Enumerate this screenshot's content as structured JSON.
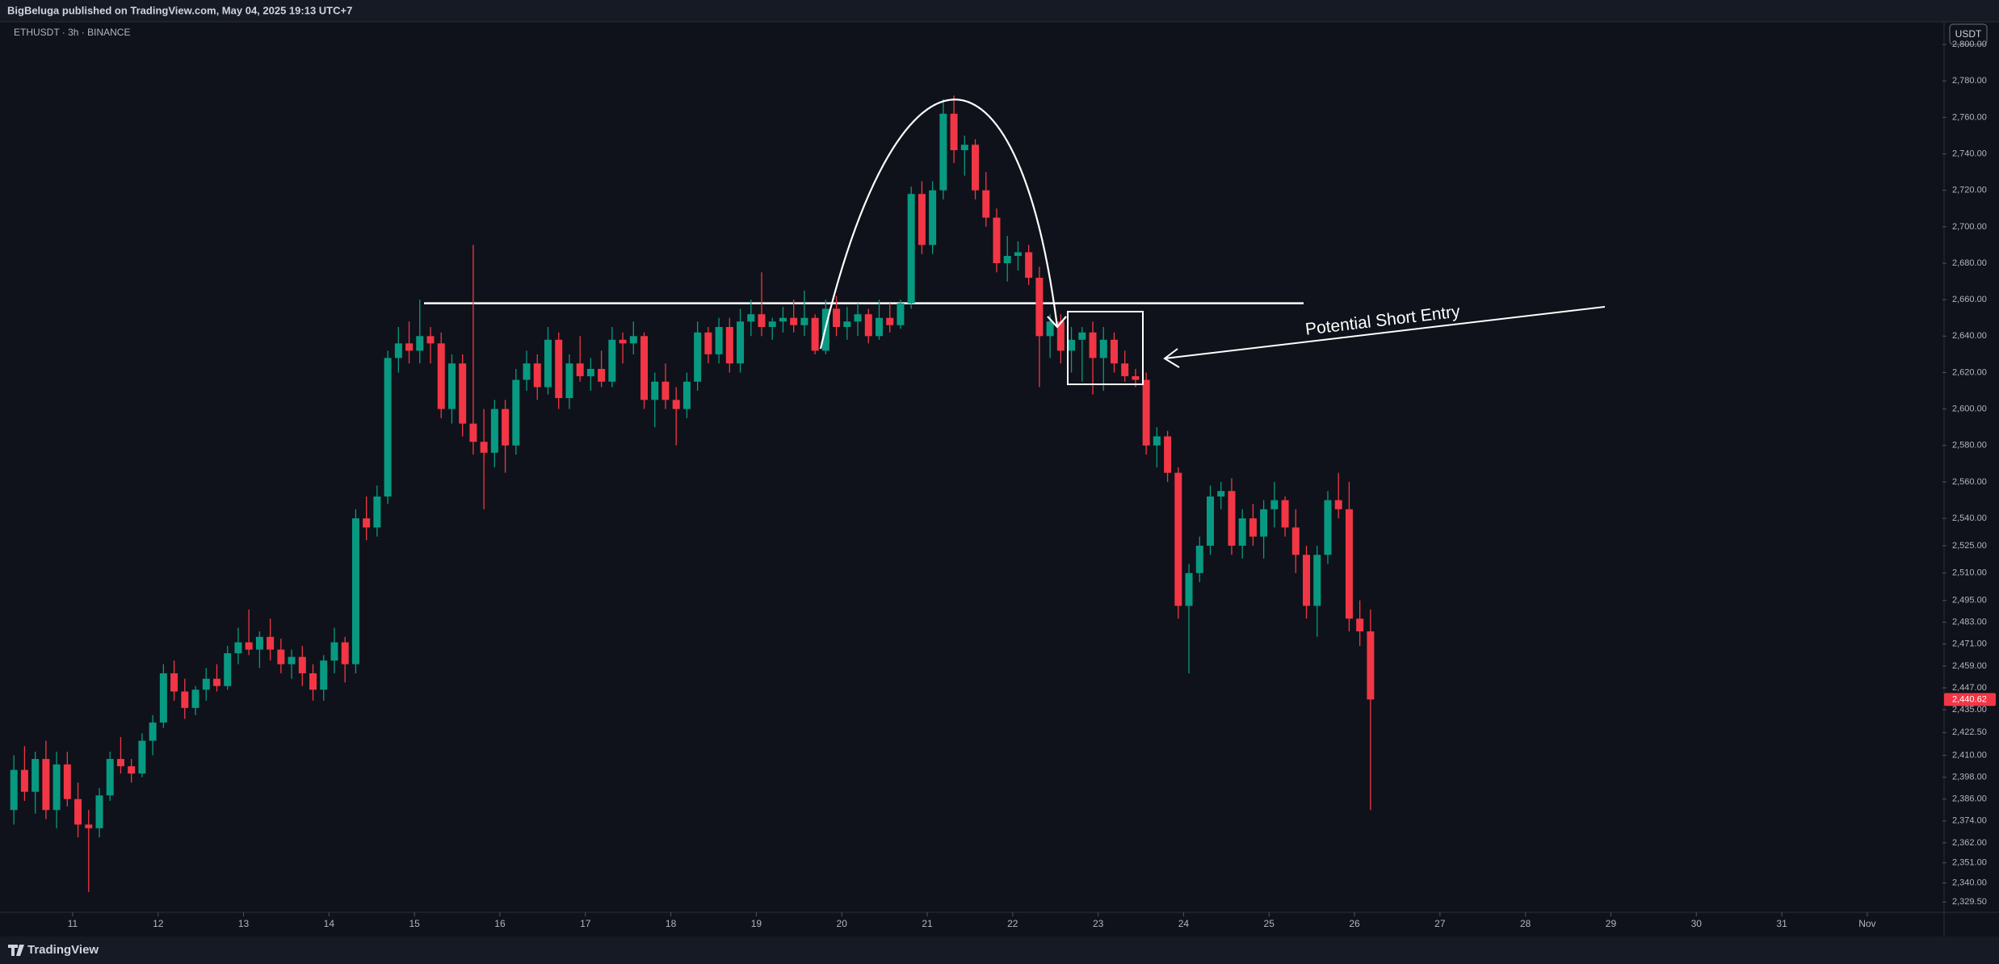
{
  "header": {
    "published": "BigBeluga published on TradingView.com, May 04, 2025 19:13 UTC+7",
    "brand": "TradingView"
  },
  "chart_data": {
    "type": "candlestick",
    "symbol": "ETHUSDT · 3h · BINANCE",
    "currency": "USDT",
    "annotation": "Potential Short Entry",
    "up_color": "#089981",
    "down_color": "#f23645",
    "grid": false,
    "resistance": 2658,
    "last_price": {
      "value": 2440.62,
      "label": "2,440.62"
    },
    "xlim": [
      10.15,
      32.88
    ],
    "xticks": [
      11,
      12,
      13,
      14,
      15,
      16,
      17,
      18,
      19,
      20,
      21,
      22,
      23,
      24,
      25,
      26,
      27,
      28,
      29,
      30,
      31,
      {
        "value": 32,
        "label": "Nov"
      }
    ],
    "ylim": [
      2315,
      2812
    ],
    "yticks": [
      {
        "value": 2800,
        "label": "2,800.00"
      },
      {
        "value": 2780,
        "label": "2,780.00"
      },
      {
        "value": 2760,
        "label": "2,760.00"
      },
      {
        "value": 2740,
        "label": "2,740.00"
      },
      {
        "value": 2720,
        "label": "2,720.00"
      },
      {
        "value": 2700,
        "label": "2,700.00"
      },
      {
        "value": 2680,
        "label": "2,680.00"
      },
      {
        "value": 2660,
        "label": "2,660.00"
      },
      {
        "value": 2640,
        "label": "2,640.00"
      },
      {
        "value": 2620,
        "label": "2,620.00"
      },
      {
        "value": 2600,
        "label": "2,600.00"
      },
      {
        "value": 2580,
        "label": "2,580.00"
      },
      {
        "value": 2560,
        "label": "2,560.00"
      },
      {
        "value": 2540,
        "label": "2,540.00"
      },
      {
        "value": 2525,
        "label": "2,525.00"
      },
      {
        "value": 2510,
        "label": "2,510.00"
      },
      {
        "value": 2495,
        "label": "2,495.00"
      },
      {
        "value": 2483,
        "label": "2,483.00"
      },
      {
        "value": 2471,
        "label": "2,471.00"
      },
      {
        "value": 2459,
        "label": "2,459.00"
      },
      {
        "value": 2447,
        "label": "2,447.00"
      },
      {
        "value": 2435,
        "label": "2,435.00"
      },
      {
        "value": 2422.5,
        "label": "2,422.50"
      },
      {
        "value": 2410,
        "label": "2,410.00"
      },
      {
        "value": 2398,
        "label": "2,398.00"
      },
      {
        "value": 2386,
        "label": "2,386.00"
      },
      {
        "value": 2374,
        "label": "2,374.00"
      },
      {
        "value": 2362,
        "label": "2,362.00"
      },
      {
        "value": 2351,
        "label": "2,351.00"
      },
      {
        "value": 2340,
        "label": "2,340.00"
      },
      {
        "value": 2329.5,
        "label": "2,329.50"
      }
    ],
    "x": [
      10.3125,
      10.4375,
      10.5625,
      10.6875,
      10.8125,
      10.9375,
      11.0625,
      11.1875,
      11.3125,
      11.4375,
      11.5625,
      11.6875,
      11.8125,
      11.9375,
      12.0625,
      12.1875,
      12.3125,
      12.4375,
      12.5625,
      12.6875,
      12.8125,
      12.9375,
      13.0625,
      13.1875,
      13.3125,
      13.4375,
      13.5625,
      13.6875,
      13.8125,
      13.9375,
      14.0625,
      14.1875,
      14.3125,
      14.4375,
      14.5625,
      14.6875,
      14.8125,
      14.9375,
      15.0625,
      15.1875,
      15.3125,
      15.4375,
      15.5625,
      15.6875,
      15.8125,
      15.9375,
      16.0625,
      16.1875,
      16.3125,
      16.4375,
      16.5625,
      16.6875,
      16.8125,
      16.9375,
      17.0625,
      17.1875,
      17.3125,
      17.4375,
      17.5625,
      17.6875,
      17.8125,
      17.9375,
      18.0625,
      18.1875,
      18.3125,
      18.4375,
      18.5625,
      18.6875,
      18.8125,
      18.9375,
      19.0625,
      19.1875,
      19.3125,
      19.4375,
      19.5625,
      19.6875,
      19.8125,
      19.9375,
      20.0625,
      20.1875,
      20.3125,
      20.4375,
      20.5625,
      20.6875,
      20.8125,
      20.9375,
      21.0625,
      21.1875,
      21.3125,
      21.4375,
      21.5625,
      21.6875,
      21.8125,
      21.9375,
      22.0625,
      22.1875,
      22.3125,
      22.4375,
      22.5625,
      22.6875,
      22.8125,
      22.9375,
      23.0625,
      23.1875,
      23.3125,
      23.4375,
      23.5625,
      23.6875,
      23.8125,
      23.9375,
      24.0625,
      24.1875,
      24.3125,
      24.4375,
      24.5625,
      24.6875,
      24.8125,
      24.9375,
      25.0625,
      25.1875,
      25.3125,
      25.4375,
      25.5625,
      25.6875,
      25.8125,
      25.9375,
      26.0625,
      26.1875
    ],
    "candles": [
      [
        2380,
        2410,
        2372,
        2402
      ],
      [
        2402,
        2415,
        2385,
        2390
      ],
      [
        2390,
        2412,
        2378,
        2408
      ],
      [
        2408,
        2418,
        2375,
        2380
      ],
      [
        2380,
        2412,
        2370,
        2405
      ],
      [
        2405,
        2412,
        2382,
        2386
      ],
      [
        2386,
        2395,
        2365,
        2372
      ],
      [
        2372,
        2380,
        2335,
        2370
      ],
      [
        2370,
        2392,
        2365,
        2388
      ],
      [
        2388,
        2412,
        2385,
        2408
      ],
      [
        2408,
        2420,
        2400,
        2404
      ],
      [
        2404,
        2408,
        2395,
        2400
      ],
      [
        2400,
        2422,
        2398,
        2418
      ],
      [
        2418,
        2432,
        2410,
        2428
      ],
      [
        2428,
        2460,
        2425,
        2455
      ],
      [
        2455,
        2462,
        2440,
        2445
      ],
      [
        2445,
        2452,
        2430,
        2436
      ],
      [
        2436,
        2448,
        2432,
        2446
      ],
      [
        2446,
        2458,
        2440,
        2452
      ],
      [
        2452,
        2460,
        2445,
        2448
      ],
      [
        2448,
        2470,
        2446,
        2466
      ],
      [
        2466,
        2480,
        2460,
        2472
      ],
      [
        2472,
        2490,
        2465,
        2468
      ],
      [
        2468,
        2478,
        2458,
        2475
      ],
      [
        2475,
        2485,
        2462,
        2468
      ],
      [
        2468,
        2474,
        2455,
        2460
      ],
      [
        2460,
        2468,
        2452,
        2464
      ],
      [
        2464,
        2470,
        2448,
        2455
      ],
      [
        2455,
        2460,
        2440,
        2446
      ],
      [
        2446,
        2465,
        2440,
        2462
      ],
      [
        2462,
        2480,
        2455,
        2472
      ],
      [
        2472,
        2475,
        2450,
        2460
      ],
      [
        2460,
        2545,
        2455,
        2540
      ],
      [
        2540,
        2552,
        2528,
        2535
      ],
      [
        2535,
        2558,
        2530,
        2552
      ],
      [
        2552,
        2632,
        2548,
        2628
      ],
      [
        2628,
        2645,
        2620,
        2636
      ],
      [
        2636,
        2648,
        2625,
        2632
      ],
      [
        2632,
        2660,
        2625,
        2640
      ],
      [
        2640,
        2645,
        2625,
        2636
      ],
      [
        2636,
        2642,
        2595,
        2600
      ],
      [
        2600,
        2630,
        2592,
        2625
      ],
      [
        2625,
        2630,
        2585,
        2592
      ],
      [
        2592,
        2690,
        2575,
        2582
      ],
      [
        2582,
        2600,
        2545,
        2576
      ],
      [
        2576,
        2605,
        2568,
        2600
      ],
      [
        2600,
        2605,
        2565,
        2580
      ],
      [
        2580,
        2622,
        2575,
        2616
      ],
      [
        2616,
        2632,
        2610,
        2625
      ],
      [
        2625,
        2630,
        2605,
        2612
      ],
      [
        2612,
        2645,
        2608,
        2638
      ],
      [
        2638,
        2642,
        2600,
        2606
      ],
      [
        2606,
        2630,
        2600,
        2625
      ],
      [
        2625,
        2640,
        2615,
        2618
      ],
      [
        2618,
        2628,
        2610,
        2622
      ],
      [
        2622,
        2632,
        2612,
        2615
      ],
      [
        2615,
        2645,
        2612,
        2638
      ],
      [
        2638,
        2642,
        2625,
        2636
      ],
      [
        2636,
        2648,
        2630,
        2640
      ],
      [
        2640,
        2642,
        2600,
        2605
      ],
      [
        2605,
        2620,
        2590,
        2615
      ],
      [
        2615,
        2625,
        2600,
        2605
      ],
      [
        2605,
        2612,
        2580,
        2600
      ],
      [
        2600,
        2620,
        2595,
        2615
      ],
      [
        2615,
        2648,
        2610,
        2642
      ],
      [
        2642,
        2645,
        2625,
        2630
      ],
      [
        2630,
        2650,
        2625,
        2645
      ],
      [
        2645,
        2650,
        2620,
        2625
      ],
      [
        2625,
        2655,
        2620,
        2648
      ],
      [
        2648,
        2660,
        2640,
        2652
      ],
      [
        2652,
        2675,
        2640,
        2645
      ],
      [
        2645,
        2650,
        2638,
        2648
      ],
      [
        2648,
        2656,
        2642,
        2650
      ],
      [
        2650,
        2660,
        2642,
        2646
      ],
      [
        2646,
        2665,
        2640,
        2650
      ],
      [
        2650,
        2652,
        2630,
        2632
      ],
      [
        2632,
        2660,
        2630,
        2655
      ],
      [
        2655,
        2662,
        2640,
        2645
      ],
      [
        2645,
        2656,
        2638,
        2648
      ],
      [
        2648,
        2658,
        2640,
        2652
      ],
      [
        2652,
        2655,
        2636,
        2640
      ],
      [
        2640,
        2660,
        2638,
        2650
      ],
      [
        2650,
        2658,
        2642,
        2646
      ],
      [
        2646,
        2660,
        2644,
        2658
      ],
      [
        2658,
        2722,
        2655,
        2718
      ],
      [
        2718,
        2725,
        2685,
        2690
      ],
      [
        2690,
        2725,
        2685,
        2720
      ],
      [
        2720,
        2770,
        2715,
        2762
      ],
      [
        2762,
        2772,
        2735,
        2742
      ],
      [
        2742,
        2750,
        2728,
        2745
      ],
      [
        2745,
        2748,
        2715,
        2720
      ],
      [
        2720,
        2730,
        2700,
        2705
      ],
      [
        2705,
        2710,
        2675,
        2680
      ],
      [
        2680,
        2695,
        2670,
        2684
      ],
      [
        2684,
        2692,
        2676,
        2686
      ],
      [
        2686,
        2690,
        2668,
        2672
      ],
      [
        2672,
        2678,
        2612,
        2640
      ],
      [
        2640,
        2652,
        2628,
        2648
      ],
      [
        2648,
        2652,
        2625,
        2632
      ],
      [
        2632,
        2645,
        2620,
        2638
      ],
      [
        2638,
        2645,
        2615,
        2642
      ],
      [
        2642,
        2648,
        2608,
        2628
      ],
      [
        2628,
        2645,
        2610,
        2638
      ],
      [
        2638,
        2642,
        2620,
        2625
      ],
      [
        2625,
        2632,
        2615,
        2618
      ],
      [
        2618,
        2622,
        2612,
        2616
      ],
      [
        2616,
        2620,
        2575,
        2580
      ],
      [
        2580,
        2590,
        2568,
        2585
      ],
      [
        2585,
        2588,
        2560,
        2565
      ],
      [
        2565,
        2568,
        2485,
        2492
      ],
      [
        2492,
        2515,
        2455,
        2510
      ],
      [
        2510,
        2530,
        2505,
        2525
      ],
      [
        2525,
        2558,
        2520,
        2552
      ],
      [
        2552,
        2560,
        2545,
        2555
      ],
      [
        2555,
        2562,
        2520,
        2525
      ],
      [
        2525,
        2545,
        2518,
        2540
      ],
      [
        2540,
        2548,
        2525,
        2530
      ],
      [
        2530,
        2550,
        2518,
        2545
      ],
      [
        2545,
        2560,
        2535,
        2550
      ],
      [
        2550,
        2552,
        2530,
        2535
      ],
      [
        2535,
        2545,
        2510,
        2520
      ],
      [
        2520,
        2525,
        2485,
        2492
      ],
      [
        2492,
        2525,
        2475,
        2520
      ],
      [
        2520,
        2555,
        2515,
        2550
      ],
      [
        2550,
        2565,
        2540,
        2545
      ],
      [
        2545,
        2560,
        2478,
        2485
      ],
      [
        2485,
        2495,
        2470,
        2478
      ],
      [
        2478,
        2490,
        2380,
        2440.62
      ]
    ]
  }
}
